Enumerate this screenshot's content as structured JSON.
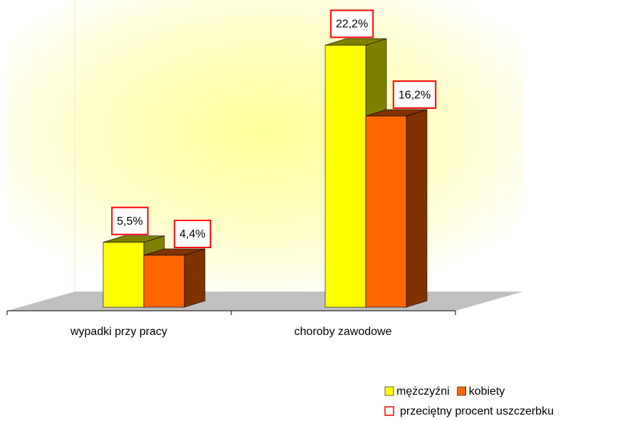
{
  "chart_data": {
    "type": "bar3d",
    "categories": [
      "wypadki przy pracy",
      "choroby zawodowe"
    ],
    "series": [
      {
        "name": "mężczyźni",
        "color": "#ffff00",
        "side_color": "#808000",
        "values": [
          5.5,
          22.2
        ],
        "value_labels": [
          "5,5%",
          "22,2%"
        ]
      },
      {
        "name": "kobiety",
        "color": "#ff6600",
        "side_color": "#803300",
        "values": [
          4.4,
          16.2
        ],
        "value_labels": [
          "4,4%",
          "16,2%"
        ]
      }
    ],
    "label_legend": "przeciętny procent uszczerbku",
    "label_box_color": "#ff0000"
  }
}
